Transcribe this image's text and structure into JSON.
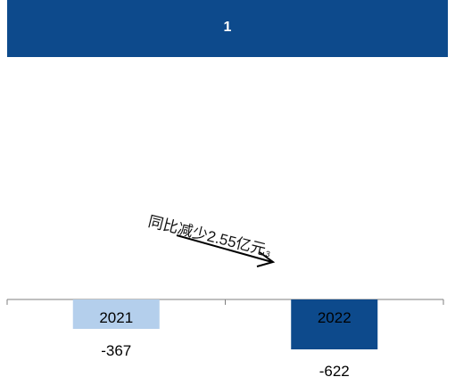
{
  "header": {
    "title": "1"
  },
  "annotation": {
    "text": "同比减少2.55亿元",
    "footnote": "3"
  },
  "colors": {
    "header": "#0d4a8c",
    "bar_2021": "#b4cfec",
    "bar_2022": "#0d4a8c",
    "axis": "#7f7f7f"
  },
  "chart_data": {
    "type": "bar",
    "categories": [
      "2021",
      "2022"
    ],
    "values": [
      -367,
      -622
    ],
    "data_labels": [
      "-367",
      "-622"
    ],
    "ylim": [
      -700,
      0
    ],
    "grid": false,
    "legend": "none"
  }
}
